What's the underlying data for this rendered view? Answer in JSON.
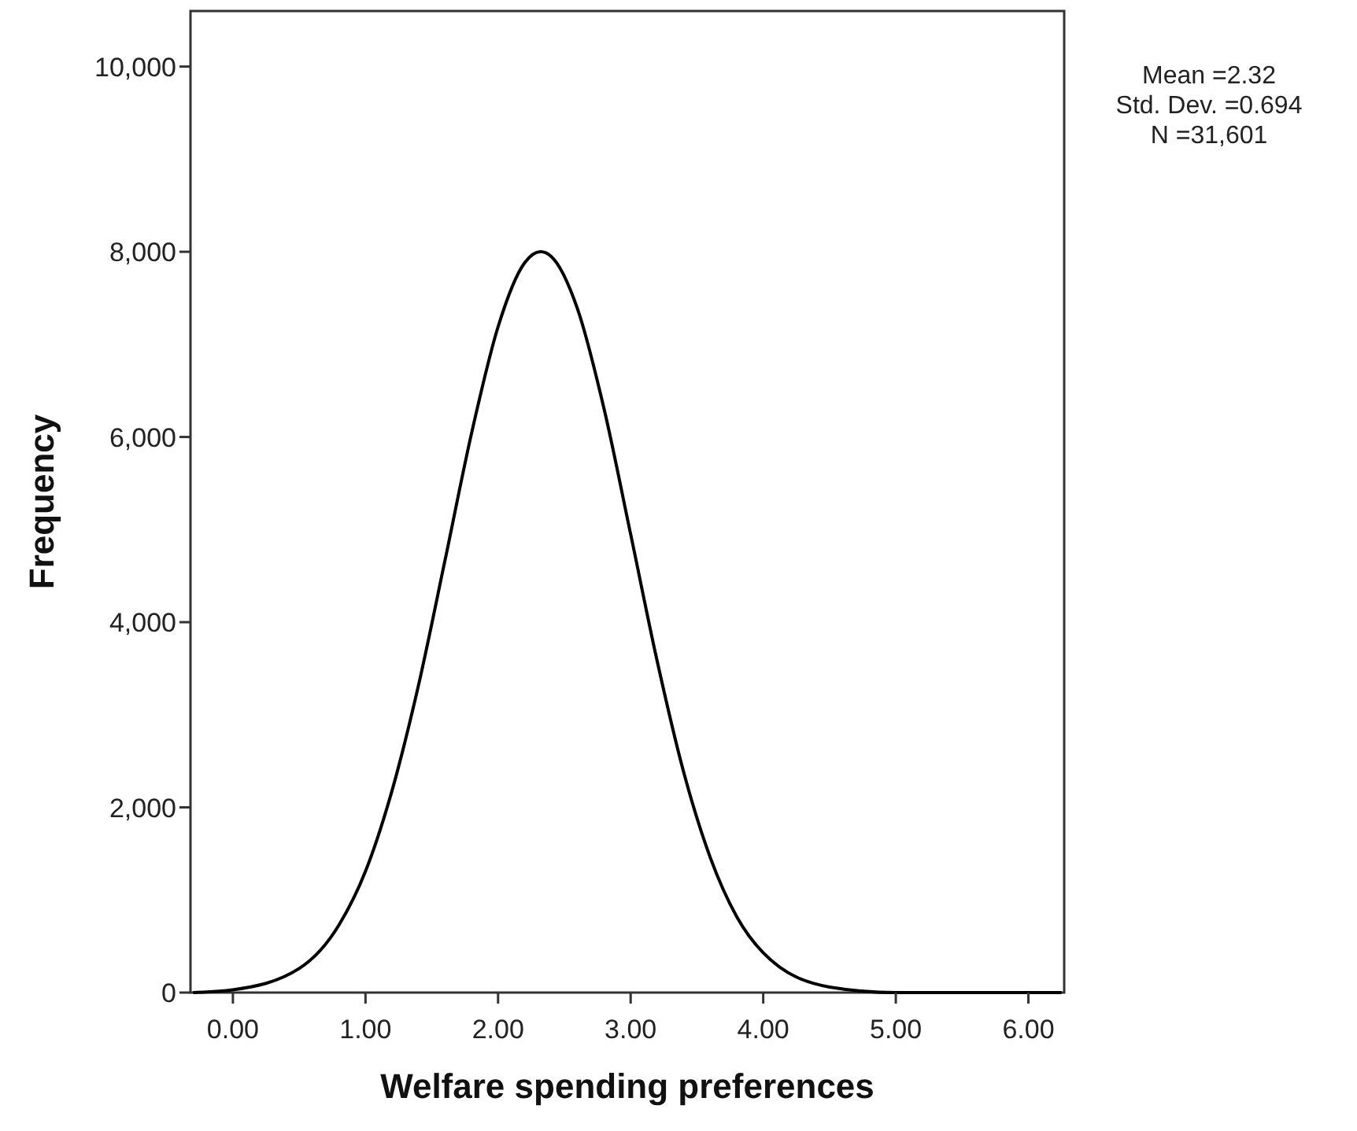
{
  "chart_data": {
    "type": "line",
    "xlabel": "Welfare spending preferences",
    "ylabel": "Frequency",
    "annotations": [
      "Mean =2.32",
      "Std. Dev. =0.694",
      "N =31,601"
    ],
    "x": [
      -0.3,
      0,
      0.5,
      0.8,
      1.0,
      1.2,
      1.4,
      1.6,
      1.8,
      2.0,
      2.2,
      2.32,
      2.4,
      2.6,
      2.8,
      3.0,
      3.2,
      3.4,
      3.6,
      3.8,
      4.0,
      4.5,
      5.0,
      6.0,
      6.25
    ],
    "series": [
      {
        "color": "#000000",
        "values": [
          0,
          30,
          260,
          730,
          1310,
          2180,
          3320,
          4670,
          6040,
          7190,
          7880,
          8000,
          7950,
          7380,
          6300,
          4950,
          3580,
          2380,
          1460,
          820,
          430,
          60,
          0,
          0,
          0
        ]
      }
    ],
    "xlim": [
      -0.32,
      6.27
    ],
    "ylim": [
      0,
      10600
    ],
    "xticks": [
      {
        "value": 0,
        "label": "0.00"
      },
      {
        "value": 1,
        "label": "1.00"
      },
      {
        "value": 2,
        "label": "2.00"
      },
      {
        "value": 3,
        "label": "3.00"
      },
      {
        "value": 4,
        "label": "4.00"
      },
      {
        "value": 5,
        "label": "5.00"
      },
      {
        "value": 6,
        "label": "6.00"
      }
    ],
    "yticks": [
      0,
      {
        "value": 2000,
        "label": "2,000"
      },
      {
        "value": 4000,
        "label": "4,000"
      },
      {
        "value": 6000,
        "label": "6,000"
      },
      {
        "value": 8000,
        "label": "8,000"
      },
      {
        "value": 10000,
        "label": "10,000"
      }
    ],
    "grid": false,
    "marker": "none",
    "line_style": "solid"
  }
}
